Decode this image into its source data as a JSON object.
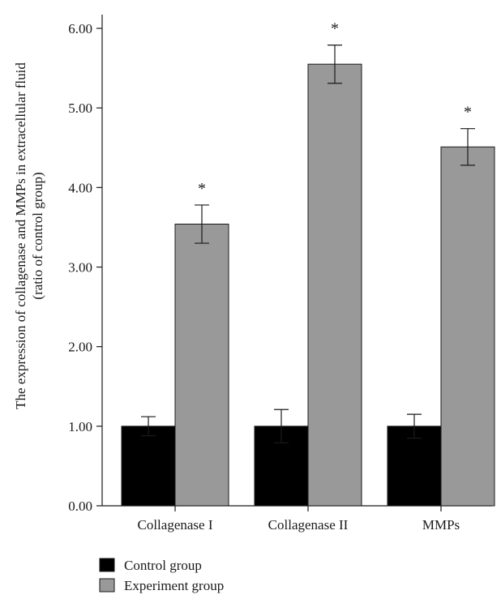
{
  "chart_data": {
    "type": "bar",
    "title": "",
    "ylabel_lines": [
      "The expression of collagenase and MMPs in extracellular fluid",
      "(ratio of control group)"
    ],
    "xlabel": "",
    "ylim": [
      0,
      6
    ],
    "yticks": [
      0,
      1,
      2,
      3,
      4,
      5,
      6
    ],
    "ytick_labels": [
      "0.00",
      "1.00",
      "2.00",
      "3.00",
      "4.00",
      "5.00",
      "6.00"
    ],
    "categories": [
      "Collagenase I",
      "Collagenase II",
      "MMPs"
    ],
    "series": [
      {
        "name": "Control group",
        "color": "#000000",
        "values": [
          1.0,
          1.0,
          1.0
        ],
        "errors": [
          0.12,
          0.21,
          0.15
        ]
      },
      {
        "name": "Experiment group",
        "color": "#999999",
        "values": [
          3.54,
          5.55,
          4.51
        ],
        "errors": [
          0.24,
          0.24,
          0.23
        ]
      }
    ],
    "significance": [
      {
        "category_index": 0,
        "series_index": 1,
        "label": "*"
      },
      {
        "category_index": 1,
        "series_index": 1,
        "label": "*"
      },
      {
        "category_index": 2,
        "series_index": 1,
        "label": "*"
      }
    ],
    "legend_position": "bottom-left",
    "grid": false
  }
}
